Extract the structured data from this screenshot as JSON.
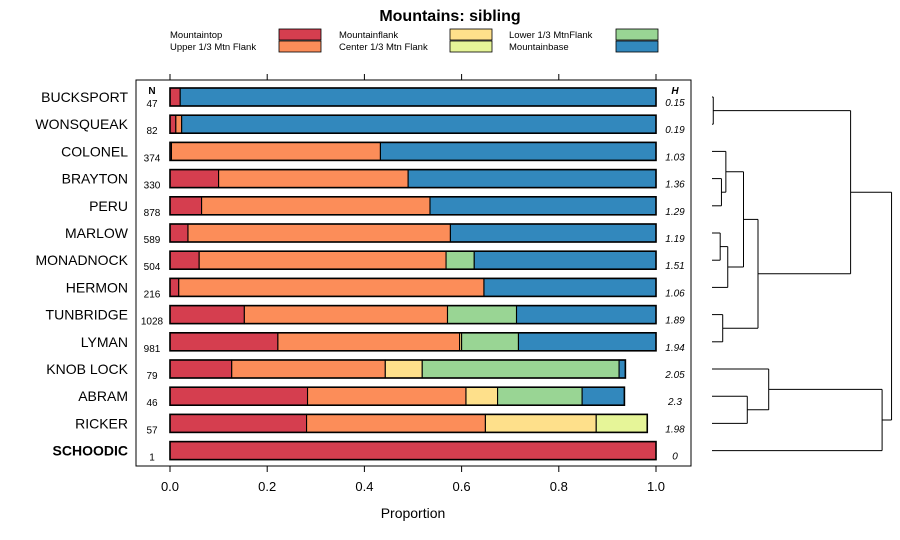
{
  "chart_data": {
    "type": "bar",
    "orientation": "horizontal",
    "stacked": true,
    "title": "Mountains: sibling",
    "xlabel": "Proportion",
    "ylabel": "",
    "xlim": [
      0,
      1
    ],
    "xticks": [
      0,
      0.2,
      0.4,
      0.6,
      0.8,
      1
    ],
    "xtick_labels": [
      "0.0",
      "0.2",
      "0.4",
      "0.6",
      "0.8",
      "1.0"
    ],
    "n_header": "N",
    "h_header": "H",
    "legend": {
      "position": "top",
      "entries": [
        {
          "name": "Mountaintop",
          "color": "#d53e4f"
        },
        {
          "name": "Upper 1/3 Mtn Flank",
          "color": "#fc8d59"
        },
        {
          "name": "Mountainflank",
          "color": "#fee08b"
        },
        {
          "name": "Center 1/3 Mtn Flank",
          "color": "#e6f598"
        },
        {
          "name": "Lower 1/3 MtnFlank",
          "color": "#99d594"
        },
        {
          "name": "Mountainbase",
          "color": "#3288bd"
        }
      ]
    },
    "series_order": [
      "Mountaintop",
      "Upper 1/3 Mtn Flank",
      "Mountainflank",
      "Center 1/3 Mtn Flank",
      "Lower 1/3 MtnFlank",
      "Mountainbase"
    ],
    "rows": [
      {
        "name": "BUCKSPORT",
        "n": "47",
        "h": "0.15",
        "bold": false,
        "values": [
          0.021,
          0,
          0,
          0,
          0,
          0.979
        ]
      },
      {
        "name": "WONSQUEAK",
        "n": "82",
        "h": "0.19",
        "bold": false,
        "values": [
          0.012,
          0.012,
          0,
          0,
          0,
          0.976
        ]
      },
      {
        "name": "COLONEL",
        "n": "374",
        "h": "1.03",
        "bold": false,
        "values": [
          0.003,
          0.43,
          0,
          0,
          0,
          0.567
        ]
      },
      {
        "name": "BRAYTON",
        "n": "330",
        "h": "1.36",
        "bold": false,
        "values": [
          0.1,
          0.39,
          0,
          0,
          0,
          0.51
        ]
      },
      {
        "name": "PERU",
        "n": "878",
        "h": "1.29",
        "bold": false,
        "values": [
          0.065,
          0.47,
          0,
          0,
          0,
          0.465
        ]
      },
      {
        "name": "MARLOW",
        "n": "589",
        "h": "1.19",
        "bold": false,
        "values": [
          0.037,
          0.54,
          0,
          0,
          0,
          0.423
        ]
      },
      {
        "name": "MONADNOCK",
        "n": "504",
        "h": "1.51",
        "bold": false,
        "values": [
          0.06,
          0.508,
          0,
          0,
          0.058,
          0.374
        ]
      },
      {
        "name": "HERMON",
        "n": "216",
        "h": "1.06",
        "bold": false,
        "values": [
          0.018,
          0.628,
          0,
          0,
          0,
          0.354
        ]
      },
      {
        "name": "TUNBRIDGE",
        "n": "1028",
        "h": "1.89",
        "bold": false,
        "values": [
          0.153,
          0.418,
          0,
          0,
          0.142,
          0.287
        ]
      },
      {
        "name": "LYMAN",
        "n": "981",
        "h": "1.94",
        "bold": false,
        "values": [
          0.222,
          0.374,
          0.004,
          0,
          0.117,
          0.283
        ]
      },
      {
        "name": "KNOB LOCK",
        "n": "79",
        "h": "2.05",
        "bold": false,
        "values": [
          0.127,
          0.316,
          0.076,
          0,
          0.405,
          0.013
        ]
      },
      {
        "name": "ABRAM",
        "n": "46",
        "h": "2.3",
        "bold": false,
        "values": [
          0.283,
          0.326,
          0.065,
          0,
          0.174,
          0.087
        ]
      },
      {
        "name": "RICKER",
        "n": "57",
        "h": "1.98",
        "bold": false,
        "values": [
          0.281,
          0.368,
          0.228,
          0.105,
          0,
          0
        ]
      },
      {
        "name": "SCHOODIC",
        "n": "1",
        "h": "0",
        "bold": true,
        "values": [
          1.0,
          0,
          0,
          0,
          0,
          0
        ]
      }
    ],
    "dendrogram": {
      "leaf_order": [
        "BUCKSPORT",
        "WONSQUEAK",
        "COLONEL",
        "BRAYTON",
        "PERU",
        "MARLOW",
        "MONADNOCK",
        "HERMON",
        "TUNBRIDGE",
        "LYMAN",
        "KNOB LOCK",
        "ABRAM",
        "RICKER",
        "SCHOODIC"
      ],
      "merges": [
        {
          "id": "m1",
          "left": "BUCKSPORT",
          "right": "WONSQUEAK",
          "height": 0.02
        },
        {
          "id": "m2",
          "left": "BRAYTON",
          "right": "PERU",
          "height": 0.15
        },
        {
          "id": "m3",
          "left": "COLONEL",
          "right": "m2",
          "height": 0.22
        },
        {
          "id": "m4",
          "left": "MARLOW",
          "right": "MONADNOCK",
          "height": 0.13
        },
        {
          "id": "m5",
          "left": "m4",
          "right": "HERMON",
          "height": 0.25
        },
        {
          "id": "m6",
          "left": "m3",
          "right": "m5",
          "height": 0.5
        },
        {
          "id": "m7",
          "left": "TUNBRIDGE",
          "right": "LYMAN",
          "height": 0.17
        },
        {
          "id": "m8",
          "left": "m6",
          "right": "m7",
          "height": 0.73
        },
        {
          "id": "m9",
          "left": "m1",
          "right": "m8",
          "height": 2.2
        },
        {
          "id": "m10",
          "left": "ABRAM",
          "right": "RICKER",
          "height": 0.56
        },
        {
          "id": "m11",
          "left": "KNOB LOCK",
          "right": "m10",
          "height": 0.9
        },
        {
          "id": "m12",
          "left": "m11",
          "right": "SCHOODIC",
          "height": 2.7
        },
        {
          "id": "m13",
          "left": "m9",
          "right": "m12",
          "height": 2.85
        }
      ]
    }
  }
}
